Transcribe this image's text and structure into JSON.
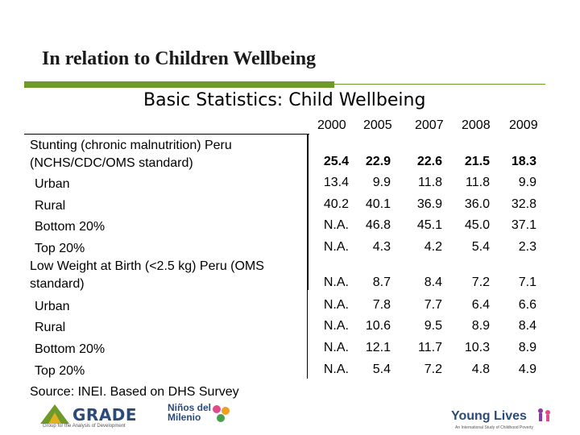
{
  "title": "In relation to Children Wellbeing",
  "subtitle": "Basic Statistics: Child Wellbeing",
  "table": {
    "years": [
      "2000",
      "2005",
      "2007",
      "2008",
      "2009"
    ],
    "rows": [
      {
        "label": "Stunting (chronic malnutrition) Peru",
        "label2": "(NCHS/CDC/OMS standard)",
        "bold": true,
        "values": [
          "25.4",
          "22.9",
          "22.6",
          "21.5",
          "18.3"
        ]
      },
      {
        "label": "Urban",
        "values": [
          "13.4",
          "9.9",
          "11.8",
          "11.8",
          "9.9"
        ]
      },
      {
        "label": "Rural",
        "values": [
          "40.2",
          "40.1",
          "36.9",
          "36.0",
          "32.8"
        ]
      },
      {
        "label": "Bottom 20%",
        "values": [
          "N.A.",
          "46.8",
          "45.1",
          "45.0",
          "37.1"
        ]
      },
      {
        "label": "Top 20%",
        "values": [
          "N.A.",
          "4.3",
          "4.2",
          "5.4",
          "2.3"
        ]
      },
      {
        "label": "Low Weight at Birth (<2.5 kg) Peru (OMS",
        "label2": "standard)",
        "values": [
          "N.A.",
          "8.7",
          "8.4",
          "7.2",
          "7.1"
        ]
      },
      {
        "label": "Urban",
        "values": [
          "N.A.",
          "7.8",
          "7.7",
          "6.4",
          "6.6"
        ]
      },
      {
        "label": "Rural",
        "values": [
          "N.A.",
          "10.6",
          "9.5",
          "8.9",
          "8.4"
        ]
      },
      {
        "label": "Bottom 20%",
        "values": [
          "N.A.",
          "12.1",
          "11.7",
          "10.3",
          "8.9"
        ]
      },
      {
        "label": "Top 20%",
        "values": [
          "N.A.",
          "5.4",
          "7.2",
          "4.8",
          "4.9"
        ]
      }
    ]
  },
  "source": "Source:  INEI. Based on DHS Survey",
  "logos": {
    "grade": "GRADE",
    "grade_sub": "Group for the Analysis of Development",
    "ninos_line1": "Niños del",
    "ninos_line2": "Milenio",
    "young_lives": "Young Lives",
    "young_lives_sub": "An International Study of Childhood Poverty"
  },
  "colors": {
    "accent_green": "#6e9a2a",
    "logo_blue": "#2b4a7a"
  }
}
